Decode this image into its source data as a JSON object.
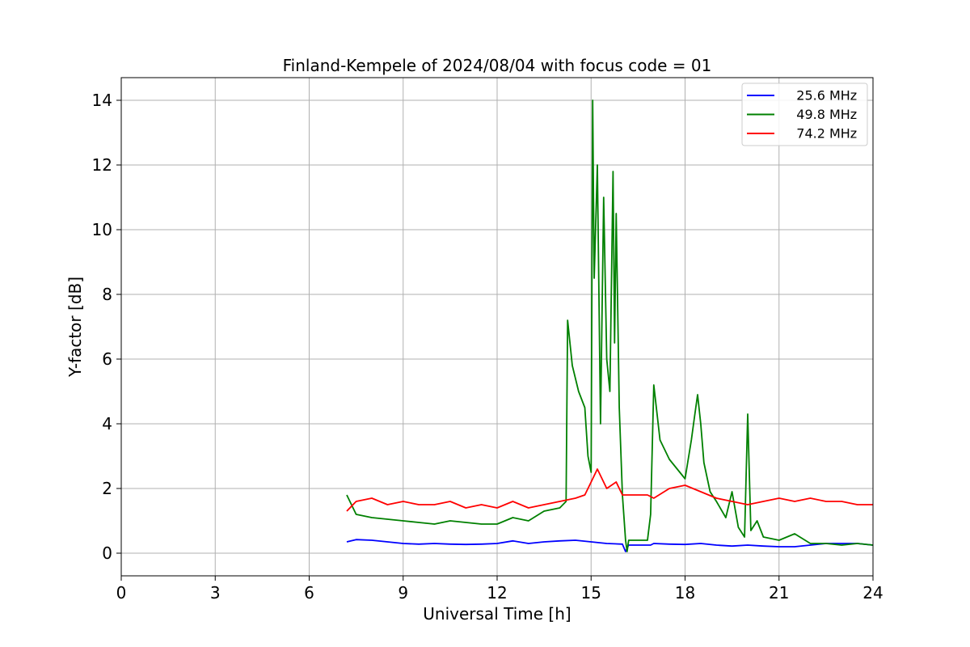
{
  "chart_data": {
    "type": "line",
    "title": "Finland-Kempele of 2024/08/04 with focus code = 01",
    "xlabel": "Universal Time [h]",
    "ylabel": "Y-factor [dB]",
    "xlim": [
      0,
      24
    ],
    "ylim": [
      -0.7,
      14.7
    ],
    "xticks": [
      0,
      3,
      6,
      9,
      12,
      15,
      18,
      21,
      24
    ],
    "yticks": [
      0,
      2,
      4,
      6,
      8,
      10,
      12,
      14
    ],
    "grid": true,
    "legend_position": "top-right",
    "series": [
      {
        "name": "   25.6 MHz",
        "color": "#0000ff",
        "x": [
          7.2,
          7.5,
          8.0,
          8.5,
          9.0,
          9.5,
          10.0,
          10.5,
          11.0,
          11.5,
          12.0,
          12.5,
          13.0,
          13.5,
          14.0,
          14.5,
          15.0,
          15.5,
          16.0,
          16.1,
          16.2,
          16.3,
          16.9,
          17.0,
          17.5,
          18.0,
          18.5,
          19.0,
          19.5,
          20.0,
          20.5,
          21.0,
          21.5,
          22.0,
          22.5,
          23.0,
          23.5,
          24.0
        ],
        "y": [
          0.35,
          0.42,
          0.4,
          0.35,
          0.3,
          0.28,
          0.3,
          0.28,
          0.27,
          0.28,
          0.3,
          0.38,
          0.3,
          0.35,
          0.38,
          0.4,
          0.35,
          0.3,
          0.28,
          0.05,
          0.25,
          0.25,
          0.25,
          0.3,
          0.28,
          0.27,
          0.3,
          0.25,
          0.22,
          0.25,
          0.22,
          0.2,
          0.2,
          0.25,
          0.3,
          0.3,
          0.3,
          0.25
        ]
      },
      {
        "name": "   49.8 MHz",
        "color": "#008000",
        "x": [
          7.2,
          7.5,
          8.0,
          8.5,
          9.0,
          9.5,
          10.0,
          10.5,
          11.0,
          11.5,
          12.0,
          12.5,
          13.0,
          13.5,
          14.0,
          14.2,
          14.25,
          14.4,
          14.6,
          14.8,
          14.9,
          15.0,
          15.05,
          15.1,
          15.2,
          15.3,
          15.4,
          15.5,
          15.6,
          15.7,
          15.75,
          15.8,
          15.9,
          16.0,
          16.1,
          16.15,
          16.2,
          16.8,
          16.9,
          17.0,
          17.2,
          17.5,
          18.0,
          18.2,
          18.3,
          18.4,
          18.5,
          18.6,
          18.8,
          19.0,
          19.3,
          19.5,
          19.7,
          19.9,
          20.0,
          20.1,
          20.3,
          20.5,
          21.0,
          21.5,
          22.0,
          22.5,
          23.0,
          23.5,
          24.0
        ],
        "y": [
          1.8,
          1.2,
          1.1,
          1.05,
          1.0,
          0.95,
          0.9,
          1.0,
          0.95,
          0.9,
          0.9,
          1.1,
          1.0,
          1.3,
          1.4,
          1.6,
          7.2,
          5.8,
          5.0,
          4.5,
          3.0,
          2.5,
          14.0,
          8.5,
          12.0,
          4.0,
          11.0,
          6.0,
          5.0,
          11.8,
          6.5,
          10.5,
          4.5,
          1.8,
          0.4,
          0.05,
          0.4,
          0.4,
          1.2,
          5.2,
          3.5,
          2.9,
          2.3,
          3.5,
          4.2,
          4.9,
          4.0,
          2.8,
          1.9,
          1.6,
          1.1,
          1.9,
          0.8,
          0.5,
          4.3,
          0.7,
          1.0,
          0.5,
          0.4,
          0.6,
          0.3,
          0.3,
          0.25,
          0.3,
          0.25
        ]
      },
      {
        "name": "   74.2 MHz",
        "color": "#ff0000",
        "x": [
          7.2,
          7.5,
          8.0,
          8.5,
          9.0,
          9.5,
          10.0,
          10.5,
          11.0,
          11.5,
          12.0,
          12.5,
          13.0,
          13.5,
          14.0,
          14.5,
          14.8,
          15.0,
          15.2,
          15.5,
          15.8,
          16.0,
          16.2,
          16.8,
          17.0,
          17.5,
          18.0,
          18.5,
          19.0,
          19.5,
          20.0,
          20.5,
          21.0,
          21.5,
          22.0,
          22.5,
          23.0,
          23.5,
          24.0
        ],
        "y": [
          1.3,
          1.6,
          1.7,
          1.5,
          1.6,
          1.5,
          1.5,
          1.6,
          1.4,
          1.5,
          1.4,
          1.6,
          1.4,
          1.5,
          1.6,
          1.7,
          1.8,
          2.2,
          2.6,
          2.0,
          2.2,
          1.8,
          1.8,
          1.8,
          1.7,
          2.0,
          2.1,
          1.9,
          1.7,
          1.6,
          1.5,
          1.6,
          1.7,
          1.6,
          1.7,
          1.6,
          1.6,
          1.5,
          1.5
        ]
      }
    ]
  }
}
